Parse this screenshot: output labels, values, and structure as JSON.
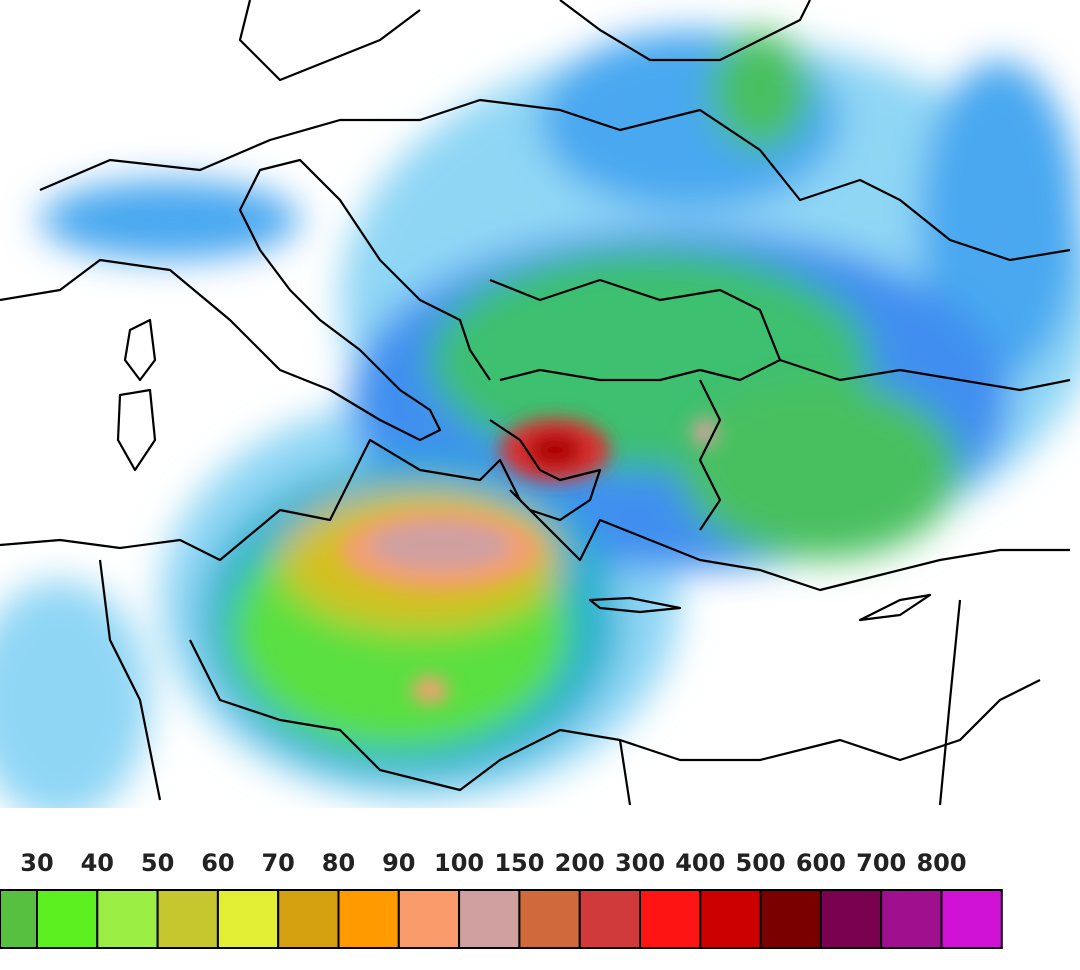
{
  "legend": {
    "ticks": [
      "30",
      "40",
      "50",
      "60",
      "70",
      "80",
      "90",
      "100",
      "150",
      "200",
      "300",
      "400",
      "500",
      "600",
      "700",
      "800"
    ],
    "colors": [
      "#58c040",
      "#5cf020",
      "#9aee44",
      "#c6c62e",
      "#e2ee34",
      "#d4a010",
      "#ff9a00",
      "#f89a6a",
      "#d0a0a0",
      "#d06a3a",
      "#d03a3a",
      "#ff1414",
      "#cc0000",
      "#7a0000",
      "#7a0050",
      "#a0108e",
      "#d012d6"
    ]
  }
}
